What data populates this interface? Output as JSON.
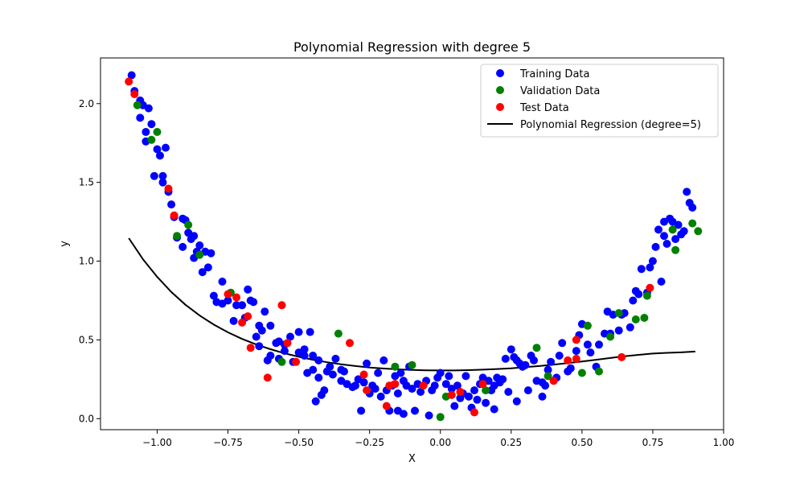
{
  "chart_data": {
    "type": "scatter",
    "title": "Polynomial Regression with degree 5",
    "xlabel": "X",
    "ylabel": "y",
    "xlim": [
      -1.2,
      1.0
    ],
    "ylim": [
      -0.07,
      2.29
    ],
    "x_ticks": [
      -1.0,
      -0.75,
      -0.5,
      -0.25,
      0.0,
      0.25,
      0.5,
      0.75,
      1.0
    ],
    "x_tick_labels": [
      "−1.00",
      "−0.75",
      "−0.50",
      "−0.25",
      "0.00",
      "0.25",
      "0.50",
      "0.75",
      "1.00"
    ],
    "y_ticks": [
      0.0,
      0.5,
      1.0,
      1.5,
      2.0
    ],
    "y_tick_labels": [
      "0.0",
      "0.5",
      "1.0",
      "1.5",
      "2.0"
    ],
    "grid": false,
    "legend_position": "top-right",
    "series": [
      {
        "name": "Training Data",
        "kind": "scatter",
        "color": "#0000ff",
        "points": [
          [
            -1.09,
            2.18
          ],
          [
            -1.08,
            2.08
          ],
          [
            -1.06,
            2.02
          ],
          [
            -1.05,
            1.99
          ],
          [
            -1.03,
            1.97
          ],
          [
            -1.06,
            1.91
          ],
          [
            -1.04,
            1.82
          ],
          [
            -1.02,
            1.87
          ],
          [
            -1.04,
            1.76
          ],
          [
            -1.0,
            1.71
          ],
          [
            -0.99,
            1.67
          ],
          [
            -0.97,
            1.72
          ],
          [
            -1.01,
            1.54
          ],
          [
            -0.98,
            1.54
          ],
          [
            -0.98,
            1.5
          ],
          [
            -0.96,
            1.44
          ],
          [
            -0.95,
            1.36
          ],
          [
            -0.94,
            1.28
          ],
          [
            -0.91,
            1.27
          ],
          [
            -0.9,
            1.26
          ],
          [
            -0.93,
            1.15
          ],
          [
            -0.89,
            1.18
          ],
          [
            -0.87,
            1.16
          ],
          [
            -0.91,
            1.09
          ],
          [
            -0.88,
            1.14
          ],
          [
            -0.86,
            1.06
          ],
          [
            -0.87,
            1.02
          ],
          [
            -0.85,
            1.1
          ],
          [
            -0.83,
            1.06
          ],
          [
            -0.81,
            1.05
          ],
          [
            -0.84,
            0.93
          ],
          [
            -0.82,
            0.96
          ],
          [
            -0.8,
            0.78
          ],
          [
            -0.79,
            0.74
          ],
          [
            -0.77,
            0.87
          ],
          [
            -0.77,
            0.73
          ],
          [
            -0.75,
            0.75
          ],
          [
            -0.72,
            0.72
          ],
          [
            -0.7,
            0.72
          ],
          [
            -0.68,
            0.82
          ],
          [
            -0.67,
            0.75
          ],
          [
            -0.66,
            0.74
          ],
          [
            -0.69,
            0.64
          ],
          [
            -0.73,
            0.62
          ],
          [
            -0.64,
            0.59
          ],
          [
            -0.62,
            0.68
          ],
          [
            -0.6,
            0.59
          ],
          [
            -0.63,
            0.56
          ],
          [
            -0.65,
            0.52
          ],
          [
            -0.64,
            0.46
          ],
          [
            -0.58,
            0.48
          ],
          [
            -0.57,
            0.49
          ],
          [
            -0.55,
            0.43
          ],
          [
            -0.53,
            0.52
          ],
          [
            -0.5,
            0.55
          ],
          [
            -0.55,
            0.47
          ],
          [
            -0.48,
            0.4
          ],
          [
            -0.6,
            0.4
          ],
          [
            -0.61,
            0.37
          ],
          [
            -0.57,
            0.38
          ],
          [
            -0.52,
            0.36
          ],
          [
            -0.5,
            0.42
          ],
          [
            -0.48,
            0.44
          ],
          [
            -0.46,
            0.55
          ],
          [
            -0.45,
            0.4
          ],
          [
            -0.43,
            0.37
          ],
          [
            -0.47,
            0.29
          ],
          [
            -0.45,
            0.31
          ],
          [
            -0.43,
            0.26
          ],
          [
            -0.4,
            0.3
          ],
          [
            -0.39,
            0.33
          ],
          [
            -0.38,
            0.28
          ],
          [
            -0.37,
            0.38
          ],
          [
            -0.35,
            0.31
          ],
          [
            -0.34,
            0.3
          ],
          [
            -0.35,
            0.24
          ],
          [
            -0.33,
            0.22
          ],
          [
            -0.31,
            0.2
          ],
          [
            -0.3,
            0.21
          ],
          [
            -0.29,
            0.25
          ],
          [
            -0.27,
            0.23
          ],
          [
            -0.26,
            0.35
          ],
          [
            -0.24,
            0.21
          ],
          [
            -0.23,
            0.19
          ],
          [
            -0.22,
            0.29
          ],
          [
            -0.2,
            0.37
          ],
          [
            -0.21,
            0.14
          ],
          [
            -0.19,
            0.18
          ],
          [
            -0.17,
            0.21
          ],
          [
            -0.16,
            0.27
          ],
          [
            -0.14,
            0.29
          ],
          [
            -0.13,
            0.24
          ],
          [
            -0.15,
            0.16
          ],
          [
            -0.12,
            0.21
          ],
          [
            -0.11,
            0.33
          ],
          [
            -0.1,
            0.19
          ],
          [
            -0.08,
            0.22
          ],
          [
            -0.07,
            0.17
          ],
          [
            -0.05,
            0.24
          ],
          [
            -0.03,
            0.18
          ],
          [
            -0.02,
            0.21
          ],
          [
            -0.01,
            0.26
          ],
          [
            0.0,
            0.29
          ],
          [
            0.02,
            0.22
          ],
          [
            0.03,
            0.27
          ],
          [
            0.04,
            0.19
          ],
          [
            0.06,
            0.21
          ],
          [
            0.08,
            0.16
          ],
          [
            0.09,
            0.27
          ],
          [
            0.1,
            0.14
          ],
          [
            0.12,
            0.18
          ],
          [
            0.14,
            0.22
          ],
          [
            0.15,
            0.26
          ],
          [
            0.17,
            0.24
          ],
          [
            0.18,
            0.18
          ],
          [
            0.19,
            0.21
          ],
          [
            0.2,
            0.26
          ],
          [
            0.21,
            0.23
          ],
          [
            0.22,
            0.25
          ],
          [
            0.23,
            0.38
          ],
          [
            0.25,
            0.44
          ],
          [
            0.26,
            0.39
          ],
          [
            0.27,
            0.37
          ],
          [
            0.28,
            0.35
          ],
          [
            0.29,
            0.33
          ],
          [
            0.3,
            0.34
          ],
          [
            0.32,
            0.4
          ],
          [
            0.33,
            0.37
          ],
          [
            0.34,
            0.24
          ],
          [
            0.36,
            0.23
          ],
          [
            0.37,
            0.21
          ],
          [
            0.38,
            0.31
          ],
          [
            0.39,
            0.36
          ],
          [
            0.41,
            0.26
          ],
          [
            0.42,
            0.4
          ],
          [
            0.43,
            0.48
          ],
          [
            0.45,
            0.3
          ],
          [
            0.46,
            0.32
          ],
          [
            0.48,
            0.43
          ],
          [
            0.49,
            0.53
          ],
          [
            0.5,
            0.6
          ],
          [
            0.52,
            0.47
          ],
          [
            0.53,
            0.42
          ],
          [
            0.55,
            0.33
          ],
          [
            0.56,
            0.47
          ],
          [
            0.58,
            0.54
          ],
          [
            0.59,
            0.68
          ],
          [
            0.6,
            0.54
          ],
          [
            0.61,
            0.66
          ],
          [
            0.63,
            0.56
          ],
          [
            0.64,
            0.66
          ],
          [
            0.65,
            0.67
          ],
          [
            0.67,
            0.58
          ],
          [
            0.68,
            0.75
          ],
          [
            0.69,
            0.81
          ],
          [
            0.7,
            0.79
          ],
          [
            0.71,
            0.95
          ],
          [
            0.73,
            0.8
          ],
          [
            0.74,
            0.96
          ],
          [
            0.75,
            1.0
          ],
          [
            0.76,
            1.09
          ],
          [
            0.77,
            1.2
          ],
          [
            0.78,
            0.87
          ],
          [
            0.79,
            1.16
          ],
          [
            0.8,
            1.11
          ],
          [
            0.81,
            1.27
          ],
          [
            0.82,
            1.25
          ],
          [
            0.83,
            1.14
          ],
          [
            0.84,
            1.23
          ],
          [
            0.85,
            1.17
          ],
          [
            0.86,
            1.19
          ],
          [
            0.87,
            1.44
          ],
          [
            0.88,
            1.37
          ],
          [
            0.89,
            1.34
          ],
          [
            0.79,
            1.25
          ],
          [
            -0.44,
            0.11
          ],
          [
            -0.42,
            0.15
          ],
          [
            -0.41,
            0.18
          ],
          [
            -0.28,
            0.05
          ],
          [
            -0.25,
            0.16
          ],
          [
            -0.18,
            0.05
          ],
          [
            -0.15,
            0.05
          ],
          [
            -0.13,
            0.03
          ],
          [
            -0.09,
            0.05
          ],
          [
            -0.04,
            0.02
          ],
          [
            0.05,
            0.08
          ],
          [
            0.07,
            0.13
          ],
          [
            0.11,
            0.07
          ],
          [
            0.13,
            0.12
          ],
          [
            0.16,
            0.1
          ],
          [
            0.19,
            0.06
          ],
          [
            0.24,
            0.17
          ],
          [
            0.27,
            0.11
          ],
          [
            0.31,
            0.18
          ],
          [
            0.36,
            0.14
          ]
        ]
      },
      {
        "name": "Validation Data",
        "kind": "scatter",
        "color": "#008000",
        "points": [
          [
            -1.07,
            1.99
          ],
          [
            -1.0,
            1.82
          ],
          [
            -1.02,
            1.77
          ],
          [
            -0.93,
            1.16
          ],
          [
            -0.89,
            1.23
          ],
          [
            -0.85,
            1.04
          ],
          [
            -0.74,
            0.8
          ],
          [
            -0.56,
            0.36
          ],
          [
            -0.36,
            0.54
          ],
          [
            -0.16,
            0.33
          ],
          [
            -0.1,
            0.34
          ],
          [
            0.0,
            0.01
          ],
          [
            0.02,
            0.14
          ],
          [
            0.16,
            0.18
          ],
          [
            0.34,
            0.45
          ],
          [
            0.38,
            0.27
          ],
          [
            0.5,
            0.29
          ],
          [
            0.52,
            0.59
          ],
          [
            0.56,
            0.3
          ],
          [
            0.6,
            0.52
          ],
          [
            0.63,
            0.67
          ],
          [
            0.69,
            0.63
          ],
          [
            0.72,
            0.64
          ],
          [
            0.73,
            0.78
          ],
          [
            0.83,
            1.07
          ],
          [
            0.82,
            1.2
          ],
          [
            0.89,
            1.24
          ],
          [
            0.91,
            1.19
          ]
        ]
      },
      {
        "name": "Test Data",
        "kind": "scatter",
        "color": "#ff0000",
        "points": [
          [
            -1.1,
            2.14
          ],
          [
            -1.08,
            2.06
          ],
          [
            -0.96,
            1.46
          ],
          [
            -0.94,
            1.29
          ],
          [
            -0.75,
            0.79
          ],
          [
            -0.72,
            0.77
          ],
          [
            -0.7,
            0.61
          ],
          [
            -0.68,
            0.65
          ],
          [
            -0.67,
            0.45
          ],
          [
            -0.61,
            0.26
          ],
          [
            -0.56,
            0.72
          ],
          [
            -0.54,
            0.48
          ],
          [
            -0.51,
            0.36
          ],
          [
            -0.32,
            0.48
          ],
          [
            -0.27,
            0.28
          ],
          [
            -0.26,
            0.18
          ],
          [
            -0.19,
            0.08
          ],
          [
            -0.18,
            0.21
          ],
          [
            -0.16,
            0.22
          ],
          [
            -0.06,
            0.21
          ],
          [
            0.04,
            0.15
          ],
          [
            0.07,
            0.17
          ],
          [
            0.12,
            0.04
          ],
          [
            0.15,
            0.22
          ],
          [
            0.4,
            0.24
          ],
          [
            0.45,
            0.37
          ],
          [
            0.48,
            0.38
          ],
          [
            0.48,
            0.5
          ],
          [
            0.64,
            0.39
          ],
          [
            0.74,
            0.83
          ]
        ]
      },
      {
        "name": "Polynomial Regression (degree=5)",
        "kind": "line",
        "color": "#000000",
        "points": [
          [
            -1.1,
            1.146
          ],
          [
            -1.05,
            1.012
          ],
          [
            -1.0,
            0.9
          ],
          [
            -0.95,
            0.804
          ],
          [
            -0.9,
            0.723
          ],
          [
            -0.85,
            0.655
          ],
          [
            -0.8,
            0.597
          ],
          [
            -0.75,
            0.548
          ],
          [
            -0.7,
            0.506
          ],
          [
            -0.65,
            0.471
          ],
          [
            -0.6,
            0.441
          ],
          [
            -0.55,
            0.415
          ],
          [
            -0.5,
            0.393
          ],
          [
            -0.45,
            0.374
          ],
          [
            -0.4,
            0.358
          ],
          [
            -0.35,
            0.345
          ],
          [
            -0.3,
            0.334
          ],
          [
            -0.25,
            0.325
          ],
          [
            -0.2,
            0.318
          ],
          [
            -0.15,
            0.313
          ],
          [
            -0.1,
            0.309
          ],
          [
            -0.05,
            0.307
          ],
          [
            0.0,
            0.306
          ],
          [
            0.05,
            0.306
          ],
          [
            0.1,
            0.308
          ],
          [
            0.15,
            0.311
          ],
          [
            0.2,
            0.315
          ],
          [
            0.25,
            0.32
          ],
          [
            0.3,
            0.327
          ],
          [
            0.35,
            0.334
          ],
          [
            0.4,
            0.343
          ],
          [
            0.45,
            0.353
          ],
          [
            0.5,
            0.363
          ],
          [
            0.55,
            0.374
          ],
          [
            0.6,
            0.385
          ],
          [
            0.65,
            0.396
          ],
          [
            0.7,
            0.405
          ],
          [
            0.75,
            0.413
          ],
          [
            0.8,
            0.418
          ],
          [
            0.85,
            0.421
          ],
          [
            0.9,
            0.426
          ]
        ]
      }
    ]
  }
}
